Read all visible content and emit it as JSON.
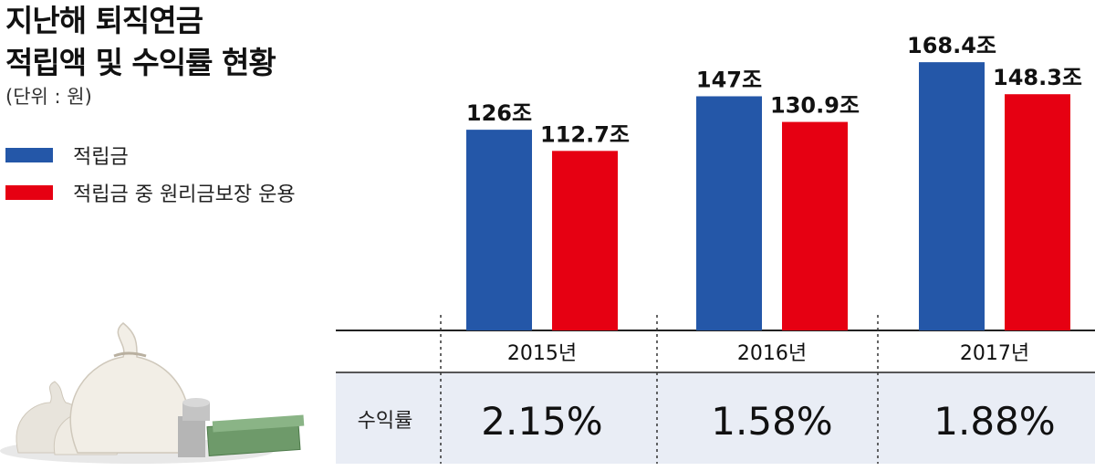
{
  "title_line1": "지난해 퇴직연금",
  "title_line2": "적립액 및 수익률 현황",
  "unit": "(단위 : 원)",
  "rate_row_label": "수익률",
  "colors": {
    "series_blue": "#2457a8",
    "series_red": "#e60012",
    "rate_bg": "#e9edf5"
  },
  "chart_data": {
    "type": "bar",
    "categories": [
      "2015년",
      "2016년",
      "2017년"
    ],
    "series": [
      {
        "name": "적립금",
        "values": [
          126,
          147,
          168.4
        ],
        "labels": [
          "126조",
          "147조",
          "168.4조"
        ],
        "color": "#2457a8"
      },
      {
        "name": "적립금 중 원리금보장 운용",
        "values": [
          112.7,
          130.9,
          148.3
        ],
        "labels": [
          "112.7조",
          "130.9조",
          "148.3조"
        ],
        "color": "#e60012"
      }
    ],
    "rates": [
      "2.15%",
      "1.58%",
      "1.88%"
    ]
  }
}
